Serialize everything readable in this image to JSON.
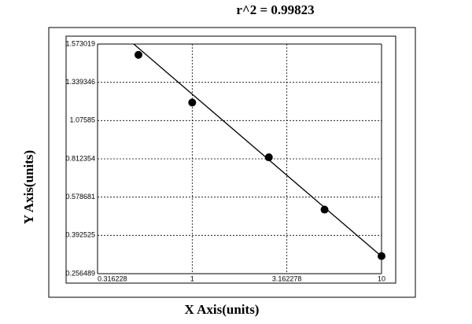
{
  "chart_data": {
    "type": "scatter",
    "title": "r^2  =  0.99823",
    "x_label": "X Axis(units)",
    "y_label": "Y Axis(units)",
    "xscale": "log",
    "xlim": [
      0.316228,
      10
    ],
    "xticks": [
      0.316228,
      1,
      3.162278,
      10
    ],
    "ylim": [
      0.256489,
      1.573019
    ],
    "yticks": [
      0.256489,
      0.392525,
      0.578681,
      0.812354,
      1.07585,
      1.339346,
      1.573019
    ],
    "grid": true,
    "series": [
      {
        "type": "scatter",
        "color": "#000000",
        "x": [
          0.52,
          1.0,
          2.54,
          5.0,
          10.0
        ],
        "values": [
          1.507,
          1.2,
          0.823,
          0.518,
          0.319
        ]
      },
      {
        "type": "line",
        "color": "#000000",
        "x": [
          0.5,
          10.0
        ],
        "values": [
          1.565,
          0.318
        ]
      }
    ]
  }
}
